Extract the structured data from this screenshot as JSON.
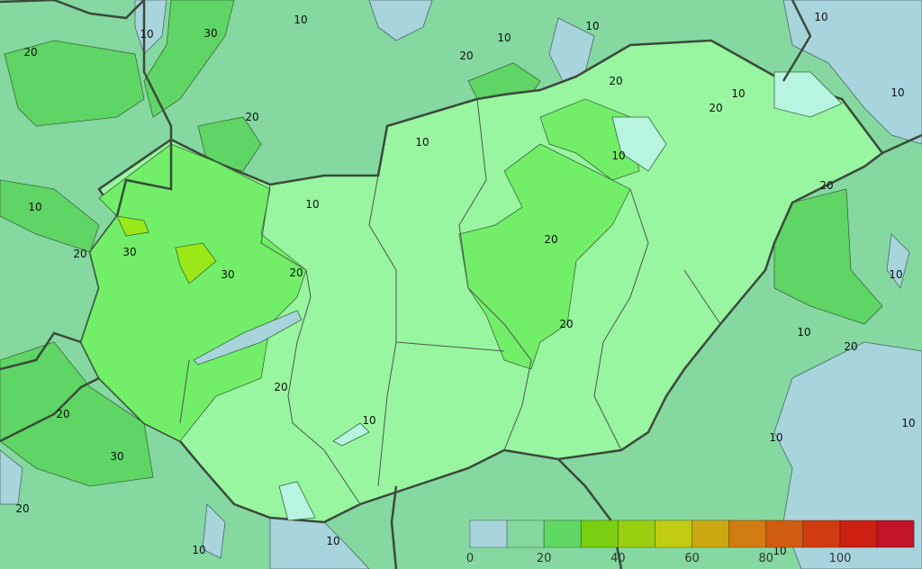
{
  "colors": {
    "background": "#84d8a0",
    "country_base": "#98f5a0",
    "low_outside": "#a8d4dc",
    "low_inside": "#b8f5e0",
    "mid_outside": "#5fd565",
    "mid_inside": "#72ee68",
    "high_inside": "#9ae818",
    "border": "#3a4a3a"
  },
  "legend": {
    "colors": [
      "#a8d4dc",
      "#84d8a0",
      "#60d864",
      "#7ad010",
      "#98d010",
      "#c0cc10",
      "#cca810",
      "#d07c10",
      "#d05c10",
      "#d03c10",
      "#cc2010",
      "#c41428"
    ],
    "tick_labels": [
      "0",
      "20",
      "40",
      "60",
      "80",
      "100"
    ]
  },
  "contour_labels": [
    "10",
    "30",
    "10",
    "10",
    "10",
    "20",
    "10",
    "10",
    "20",
    "20",
    "20",
    "10",
    "20",
    "10",
    "10",
    "20",
    "10",
    "10",
    "20",
    "30",
    "20",
    "30",
    "20",
    "10",
    "20",
    "10",
    "20",
    "20",
    "20",
    "10",
    "10",
    "10",
    "30",
    "20",
    "10",
    "10",
    "10"
  ]
}
